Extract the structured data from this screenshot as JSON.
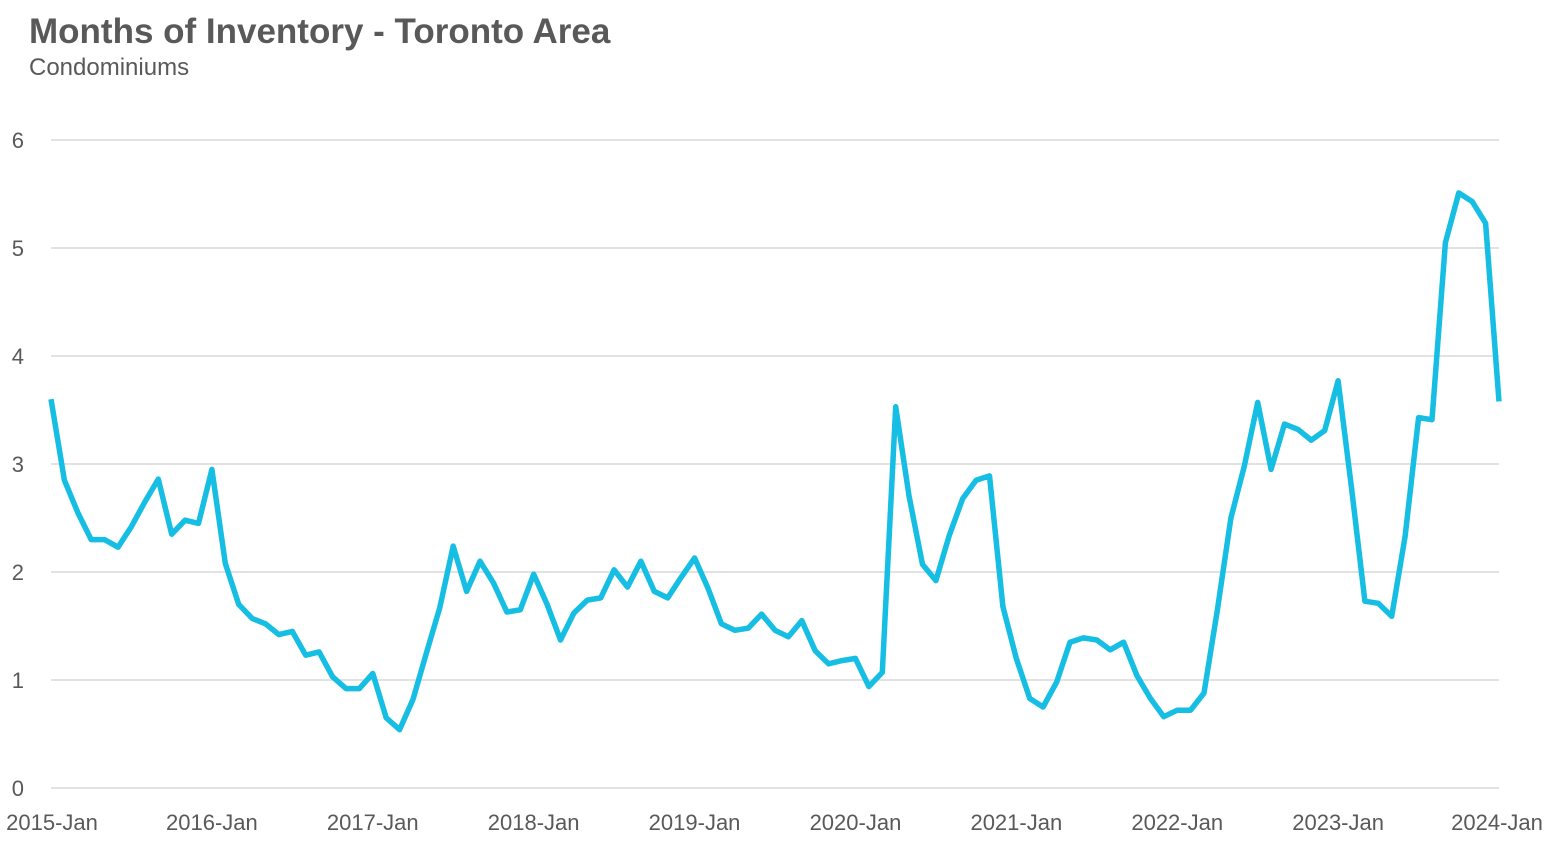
{
  "chart_data": {
    "type": "line",
    "title": "Months of Inventory - Toronto Area",
    "subtitle": "Condominiums",
    "xlabel": "",
    "ylabel": "",
    "x_start": "2015-01",
    "x_tick_labels": [
      "2015-Jan",
      "2016-Jan",
      "2017-Jan",
      "2018-Jan",
      "2019-Jan",
      "2020-Jan",
      "2021-Jan",
      "2022-Jan",
      "2023-Jan",
      "2024-Jan"
    ],
    "y_tick_labels": [
      "0",
      "1",
      "2",
      "3",
      "4",
      "5",
      "6"
    ],
    "ylim": [
      0,
      6
    ],
    "grid": true,
    "line_color": "#17BEE3",
    "grid_color": "#D9D9D9",
    "series": [
      {
        "values": [
          3.6,
          2.85,
          2.55,
          2.3,
          2.3,
          2.23,
          2.42,
          2.65,
          2.86,
          2.35,
          2.48,
          2.45,
          2.95,
          2.08,
          1.7,
          1.57,
          1.52,
          1.42,
          1.45,
          1.23,
          1.26,
          1.03,
          0.92,
          0.92,
          1.06,
          0.65,
          0.54,
          0.82,
          1.25,
          1.67,
          2.24,
          1.82,
          2.1,
          1.9,
          1.63,
          1.65,
          1.98,
          1.7,
          1.37,
          1.62,
          1.74,
          1.76,
          2.02,
          1.86,
          2.1,
          1.82,
          1.76,
          1.95,
          2.13,
          1.85,
          1.52,
          1.46,
          1.48,
          1.61,
          1.46,
          1.4,
          1.55,
          1.27,
          1.15,
          1.18,
          1.2,
          0.94,
          1.07,
          3.53,
          2.7,
          2.07,
          1.92,
          2.34,
          2.68,
          2.85,
          2.89,
          1.68,
          1.2,
          0.83,
          0.75,
          0.98,
          1.35,
          1.39,
          1.37,
          1.28,
          1.35,
          1.04,
          0.83,
          0.66,
          0.72,
          0.72,
          0.88,
          1.65,
          2.5,
          2.98,
          3.57,
          2.95,
          3.37,
          3.32,
          3.22,
          3.31,
          3.77,
          2.78,
          1.73,
          1.71,
          1.59,
          2.33,
          3.43,
          3.41,
          5.05,
          5.51,
          5.43,
          5.23,
          3.58
        ]
      }
    ]
  }
}
